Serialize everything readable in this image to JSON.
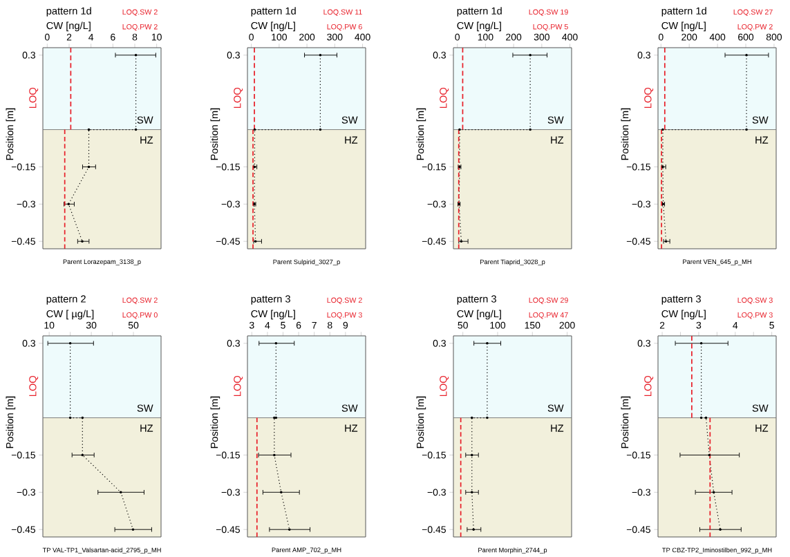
{
  "chart_data": [
    {
      "type": "line",
      "title": "pattern 1d",
      "xlabel": "CW [ng/L]",
      "ylabel": "Position [m]",
      "annotations": [
        "LOQ.SW 2",
        "LOQ.PW 2",
        "LOQ",
        "Parent Lorazepam_3138_p"
      ],
      "xlim": [
        -0.4,
        10.4
      ],
      "xticks": [
        0,
        2,
        4,
        6,
        8,
        10
      ],
      "ylim": [
        -0.48,
        0.33
      ],
      "yticks": [
        {
          "value": 0.3,
          "label": "0.3"
        },
        {
          "value": -0.15,
          "label": "−0.15"
        },
        {
          "value": -0.3,
          "label": "−0.3"
        },
        {
          "value": -0.45,
          "label": "−0.45"
        }
      ],
      "bands": [
        {
          "axis": "y",
          "from": 0,
          "to": 0.33,
          "label": "SW",
          "color": "#eefbfc"
        },
        {
          "axis": "y",
          "from": -0.48,
          "to": 0,
          "label": "HZ",
          "color": "#f2f0dc"
        }
      ],
      "series": [
        {
          "color": "#000000",
          "marker": "circle",
          "line_style": "dotted",
          "x": [
            8.1,
            8.1,
            3.8,
            3.8,
            1.95,
            3.2
          ],
          "values": [
            0.3,
            0,
            0,
            -0.15,
            -0.3,
            -0.45
          ],
          "xerrors": [
            [
              6.2,
              9.95
            ],
            null,
            null,
            [
              3.2,
              4.45
            ],
            [
              1.5,
              2.5
            ],
            [
              2.75,
              3.85
            ]
          ]
        },
        {
          "color": "#e8202a",
          "marker": "none",
          "line_style": "dashed",
          "x": [
            2.15,
            2.15
          ],
          "values": [
            0,
            0.33
          ]
        },
        {
          "color": "#e8202a",
          "marker": "none",
          "line_style": "dashed",
          "x": [
            1.6,
            1.6
          ],
          "values": [
            -0.48,
            0
          ]
        }
      ]
    },
    {
      "type": "line",
      "title": "pattern 1d",
      "xlabel": "CW [ng/L]",
      "ylabel": "Position [m]",
      "annotations": [
        "LOQ.SW 11",
        "LOQ.PW 6",
        "LOQ",
        "Parent Sulpirid_3027_p"
      ],
      "xlim": [
        -14,
        411
      ],
      "xticks": [
        0,
        100,
        200,
        300,
        400
      ],
      "ylim": [
        -0.48,
        0.33
      ],
      "yticks": [
        {
          "value": 0.3,
          "label": "0.3"
        },
        {
          "value": -0.15,
          "label": "−0.15"
        },
        {
          "value": -0.3,
          "label": "−0.3"
        },
        {
          "value": -0.45,
          "label": "−0.45"
        }
      ],
      "bands": [
        {
          "axis": "y",
          "from": 0,
          "to": 0.33,
          "label": "SW",
          "color": "#eefbfc"
        },
        {
          "axis": "y",
          "from": -0.48,
          "to": 0,
          "label": "HZ",
          "color": "#f2f0dc"
        }
      ],
      "series": [
        {
          "color": "#000000",
          "marker": "circle",
          "line_style": "dotted",
          "x": [
            248,
            248,
            12,
            12,
            11,
            15
          ],
          "values": [
            0.3,
            0,
            0,
            -0.15,
            -0.3,
            -0.45
          ],
          "xerrors": [
            [
              190,
              309
            ],
            null,
            null,
            [
              7,
              21
            ],
            [
              7,
              17
            ],
            [
              7,
              38
            ]
          ]
        },
        {
          "color": "#e8202a",
          "marker": "none",
          "line_style": "dashed",
          "x": [
            11,
            11
          ],
          "values": [
            0,
            0.33
          ]
        },
        {
          "color": "#e8202a",
          "marker": "none",
          "line_style": "dashed",
          "x": [
            6,
            6
          ],
          "values": [
            -0.48,
            0
          ]
        }
      ]
    },
    {
      "type": "line",
      "title": "pattern 1d",
      "xlabel": "CW [ng/L]",
      "ylabel": "Position [m]",
      "annotations": [
        "LOQ.SW 19",
        "LOQ.PW 5",
        "LOQ",
        "Parent Tiaprid_3028_p"
      ],
      "xlim": [
        -14,
        406
      ],
      "xticks": [
        0,
        100,
        200,
        300,
        400
      ],
      "ylim": [
        -0.48,
        0.33
      ],
      "yticks": [
        {
          "value": 0.3,
          "label": "0.3"
        },
        {
          "value": -0.15,
          "label": "−0.15"
        },
        {
          "value": -0.3,
          "label": "−0.3"
        },
        {
          "value": -0.45,
          "label": "−0.45"
        }
      ],
      "bands": [
        {
          "axis": "y",
          "from": 0,
          "to": 0.33,
          "label": "SW",
          "color": "#eefbfc"
        },
        {
          "axis": "y",
          "from": -0.48,
          "to": 0,
          "label": "HZ",
          "color": "#f2f0dc"
        }
      ],
      "series": [
        {
          "color": "#000000",
          "marker": "circle",
          "line_style": "dotted",
          "x": [
            259,
            259,
            8,
            8,
            6,
            14
          ],
          "values": [
            0.3,
            0,
            0,
            -0.15,
            -0.3,
            -0.45
          ],
          "xerrors": [
            [
              196,
              320
            ],
            null,
            null,
            [
              2,
              14
            ],
            [
              1,
              11
            ],
            [
              4,
              39
            ]
          ]
        },
        {
          "color": "#e8202a",
          "marker": "none",
          "line_style": "dashed",
          "x": [
            19,
            19
          ],
          "values": [
            0,
            0.33
          ]
        },
        {
          "color": "#e8202a",
          "marker": "none",
          "line_style": "dashed",
          "x": [
            5,
            5
          ],
          "values": [
            -0.48,
            0
          ]
        }
      ]
    },
    {
      "type": "line",
      "title": "pattern 1d",
      "xlabel": "CW [ng/L]",
      "ylabel": "Position [m]",
      "annotations": [
        "LOQ.SW 27",
        "LOQ.PW 2",
        "LOQ",
        "Parent VEN_645_p_MH"
      ],
      "xlim": [
        -21,
        815
      ],
      "xticks": [
        0,
        200,
        400,
        600,
        800
      ],
      "ylim": [
        -0.48,
        0.33
      ],
      "yticks": [
        {
          "value": 0.3,
          "label": "0.3"
        },
        {
          "value": -0.15,
          "label": "−0.15"
        },
        {
          "value": -0.3,
          "label": "−0.3"
        },
        {
          "value": -0.45,
          "label": "−0.45"
        }
      ],
      "bands": [
        {
          "axis": "y",
          "from": 0,
          "to": 0.33,
          "label": "SW",
          "color": "#eefbfc"
        },
        {
          "axis": "y",
          "from": -0.48,
          "to": 0,
          "label": "HZ",
          "color": "#f2f0dc"
        }
      ],
      "series": [
        {
          "color": "#000000",
          "marker": "circle",
          "line_style": "dotted",
          "x": [
            605,
            605,
            13,
            13,
            16,
            36
          ],
          "values": [
            0.3,
            0,
            0,
            -0.15,
            -0.3,
            -0.45
          ],
          "xerrors": [
            [
              451,
              763
            ],
            null,
            null,
            [
              3,
              36
            ],
            [
              8,
              28
            ],
            [
              16,
              65
            ]
          ]
        },
        {
          "color": "#e8202a",
          "marker": "none",
          "line_style": "dashed",
          "x": [
            27,
            27
          ],
          "values": [
            0,
            0.33
          ]
        },
        {
          "color": "#e8202a",
          "marker": "none",
          "line_style": "dashed",
          "x": [
            4,
            4
          ],
          "values": [
            -0.48,
            0
          ]
        }
      ]
    },
    {
      "type": "line",
      "title": "pattern 2",
      "xlabel": "CW [ µg/L]",
      "ylabel": "Position [m]",
      "annotations": [
        "LOQ.SW 2",
        "LOQ.PW 0",
        "LOQ",
        "TP VAL-TP1_Valsartan-acid_2795_p_MH"
      ],
      "xlim": [
        7,
        63.1
      ],
      "xticks": [
        10,
        {
          "value": 20,
          "label": null
        },
        30,
        {
          "value": 40,
          "label": null
        },
        50
      ],
      "ylim": [
        -0.48,
        0.33
      ],
      "yticks": [
        {
          "value": 0.3,
          "label": "0.3"
        },
        {
          "value": -0.15,
          "label": "−0.15"
        },
        {
          "value": -0.3,
          "label": "−0.3"
        },
        {
          "value": -0.45,
          "label": "−0.45"
        }
      ],
      "bands": [
        {
          "axis": "y",
          "from": 0,
          "to": 0.33,
          "label": "SW",
          "color": "#eefbfc"
        },
        {
          "axis": "y",
          "from": -0.48,
          "to": 0,
          "label": "HZ",
          "color": "#f2f0dc"
        }
      ],
      "series": [
        {
          "color": "#000000",
          "marker": "circle",
          "line_style": "dotted",
          "x": [
            20,
            20,
            25.8,
            25.8,
            44,
            49.8
          ],
          "values": [
            0.3,
            0,
            0,
            -0.15,
            -0.3,
            -0.45
          ],
          "xerrors": [
            [
              9.2,
              31.2
            ],
            null,
            null,
            [
              20.7,
              31.5
            ],
            [
              33,
              55.2
            ],
            [
              41,
              58.8
            ]
          ]
        }
      ]
    },
    {
      "type": "line",
      "title": "pattern 3",
      "xlabel": "CW [ng/L]",
      "ylabel": "Position [m]",
      "annotations": [
        "LOQ.SW 2",
        "LOQ.PW 3",
        "LOQ",
        "Parent AMP_702_p_MH"
      ],
      "xlim": [
        2.72,
        10.29
      ],
      "xticks": [
        3,
        4,
        5,
        6,
        7,
        8,
        9,
        {
          "value": 10,
          "label": null
        }
      ],
      "ylim": [
        -0.48,
        0.33
      ],
      "yticks": [
        {
          "value": 0.3,
          "label": "0.3"
        },
        {
          "value": -0.15,
          "label": "−0.15"
        },
        {
          "value": -0.3,
          "label": "−0.3"
        },
        {
          "value": -0.45,
          "label": "−0.45"
        }
      ],
      "bands": [
        {
          "axis": "y",
          "from": 0,
          "to": 0.33,
          "label": "SW",
          "color": "#eefbfc"
        },
        {
          "axis": "y",
          "from": -0.48,
          "to": 0,
          "label": "HZ",
          "color": "#f2f0dc"
        }
      ],
      "series": [
        {
          "color": "#000000",
          "marker": "circle",
          "line_style": "dotted",
          "x": [
            4.55,
            4.55,
            4.44,
            4.44,
            4.88,
            5.41
          ],
          "values": [
            0.3,
            0,
            0,
            -0.15,
            -0.3,
            -0.45
          ],
          "xerrors": [
            [
              3.44,
              5.74
            ],
            null,
            null,
            [
              3.41,
              5.53
            ],
            [
              3.69,
              6.07
            ],
            [
              4.11,
              6.75
            ]
          ]
        },
        {
          "color": "#e8202a",
          "marker": "none",
          "line_style": "dashed",
          "x": [
            3.33,
            3.33
          ],
          "values": [
            -0.48,
            0
          ]
        }
      ]
    },
    {
      "type": "line",
      "title": "pattern 3",
      "xlabel": "CW [ng/L]",
      "ylabel": "Position [m]",
      "annotations": [
        "LOQ.SW 29",
        "LOQ.PW 47",
        "LOQ",
        "Parent Morphin_2744_p"
      ],
      "xlim": [
        36.4,
        206.4
      ],
      "xticks": [
        50,
        100,
        150,
        200
      ],
      "ylim": [
        -0.48,
        0.33
      ],
      "yticks": [
        {
          "value": 0.3,
          "label": "0.3"
        },
        {
          "value": -0.15,
          "label": "−0.15"
        },
        {
          "value": -0.3,
          "label": "−0.3"
        },
        {
          "value": -0.45,
          "label": "−0.45"
        }
      ],
      "bands": [
        {
          "axis": "y",
          "from": 0,
          "to": 0.33,
          "label": "SW",
          "color": "#eefbfc"
        },
        {
          "axis": "y",
          "from": -0.48,
          "to": 0,
          "label": "HZ",
          "color": "#f2f0dc"
        }
      ],
      "series": [
        {
          "color": "#000000",
          "marker": "circle",
          "line_style": "dotted",
          "x": [
            85,
            85,
            63,
            63,
            63,
            65.4
          ],
          "values": [
            0.3,
            0,
            0,
            -0.15,
            -0.3,
            -0.45
          ],
          "xerrors": [
            [
              65.4,
              105
            ],
            null,
            null,
            [
              53.6,
              72.9
            ],
            [
              53.6,
              72.9
            ],
            [
              55.7,
              76.4
            ]
          ]
        },
        {
          "color": "#e8202a",
          "marker": "none",
          "line_style": "dashed",
          "x": [
            47,
            47
          ],
          "values": [
            -0.48,
            0
          ]
        }
      ]
    },
    {
      "type": "line",
      "title": "pattern 3",
      "xlabel": "CW [ng/L]",
      "ylabel": "Position [m]",
      "annotations": [
        "LOQ.SW 3",
        "LOQ.PW 3",
        "LOQ",
        "TP CBZ-TP2_Iminostilben_992_p_MH"
      ],
      "xlim": [
        1.885,
        5.12
      ],
      "xticks": [
        2,
        {
          "value": 2.5,
          "label": null
        },
        3,
        {
          "value": 3.5,
          "label": null
        },
        4,
        {
          "value": 4.5,
          "label": null
        },
        5
      ],
      "ylim": [
        -0.48,
        0.33
      ],
      "yticks": [
        {
          "value": 0.3,
          "label": "0.3"
        },
        {
          "value": -0.15,
          "label": "−0.15"
        },
        {
          "value": -0.3,
          "label": "−0.3"
        },
        {
          "value": -0.45,
          "label": "−0.45"
        }
      ],
      "bands": [
        {
          "axis": "y",
          "from": 0,
          "to": 0.33,
          "label": "SW",
          "color": "#eefbfc"
        },
        {
          "axis": "y",
          "from": -0.48,
          "to": 0,
          "label": "HZ",
          "color": "#f2f0dc"
        }
      ],
      "series": [
        {
          "color": "#000000",
          "marker": "circle",
          "line_style": "dotted",
          "x": [
            3.07,
            3.07,
            3.2,
            3.29,
            3.41,
            3.59
          ],
          "values": [
            0.3,
            0,
            0,
            -0.15,
            -0.3,
            -0.45
          ],
          "xerrors": [
            [
              2.35,
              3.81
            ],
            null,
            null,
            [
              2.48,
              4.12
            ],
            [
              2.9,
              3.92
            ],
            [
              3.02,
              4.17
            ]
          ]
        },
        {
          "color": "#e8202a",
          "marker": "none",
          "line_style": "dashed",
          "x": [
            2.81,
            2.81
          ],
          "values": [
            0,
            0.33
          ]
        },
        {
          "color": "#e8202a",
          "marker": "none",
          "line_style": "dashed",
          "x": [
            3.31,
            3.31
          ],
          "values": [
            -0.48,
            0
          ]
        }
      ]
    }
  ]
}
